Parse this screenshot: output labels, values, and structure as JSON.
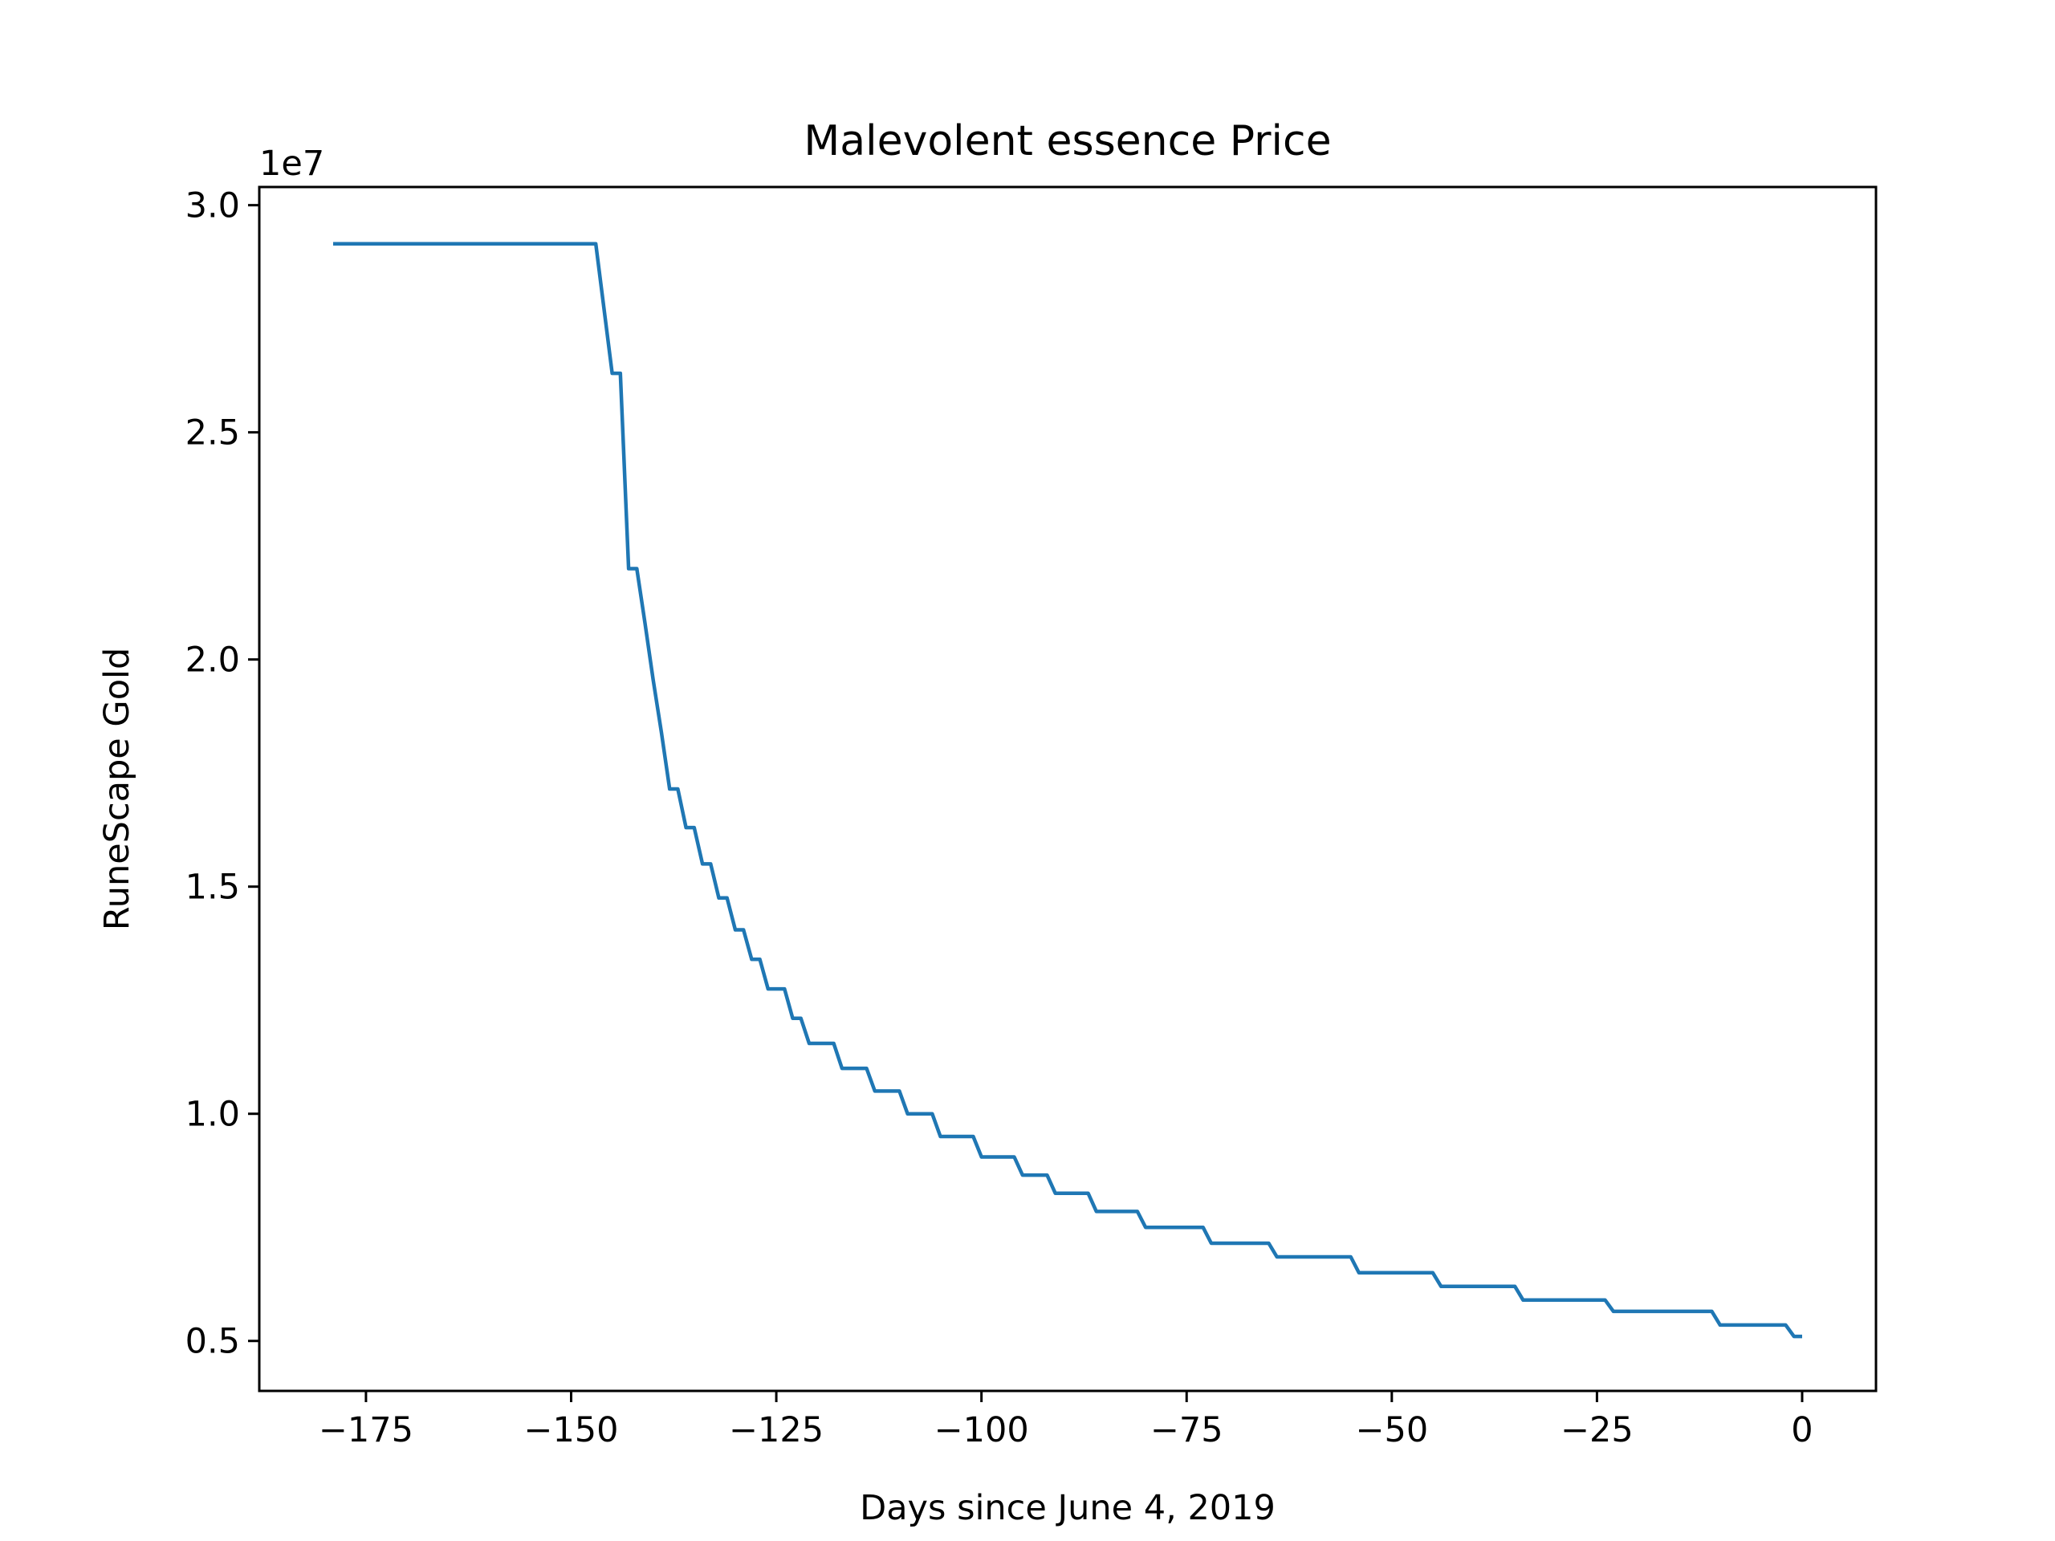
{
  "chart_data": {
    "type": "line",
    "title": "Malevolent essence Price",
    "xlabel": "Days since June 4, 2019",
    "ylabel": "RuneScape Gold",
    "y_offset_text": "1e7",
    "xlim": [
      -188,
      9
    ],
    "ylim": [
      3.9,
      30.4
    ],
    "y_scale_factor": 1000000,
    "grid": false,
    "legend": "none",
    "x_ticks": [
      -175,
      -150,
      -125,
      -100,
      -75,
      -50,
      -25,
      0
    ],
    "x_tick_labels": [
      "−175",
      "−150",
      "−125",
      "−100",
      "−75",
      "−50",
      "−25",
      "0"
    ],
    "y_ticks": [
      5,
      10,
      15,
      20,
      25,
      30
    ],
    "y_tick_labels": [
      "0.5",
      "1.0",
      "1.5",
      "2.0",
      "2.5",
      "3.0"
    ],
    "colors": {
      "line": "#1f77b4",
      "axes": "#000000",
      "background": "#ffffff"
    },
    "series": [
      {
        "x": [
          -179,
          -147,
          -145,
          -144,
          -143,
          -142,
          -141,
          -140,
          -139,
          -138,
          -137,
          -136,
          -135,
          -134,
          -133,
          -132,
          -131,
          -130,
          -129,
          -128,
          -127,
          -126,
          -125,
          -124,
          -123,
          -122,
          -121,
          -120,
          -119,
          -118,
          -117,
          -116,
          -115,
          -114,
          -113,
          -112,
          -111,
          -110,
          -109,
          -108,
          -107,
          -106,
          -105,
          -104,
          -103,
          -102,
          -101,
          -100,
          -99,
          -98,
          -97,
          -96,
          -95,
          -94,
          -93,
          -92,
          -91,
          -90,
          -89,
          -88,
          -87,
          -86,
          -85,
          -84,
          -83,
          -82,
          -81,
          -80,
          -79,
          -78,
          -73,
          -72,
          -65,
          -64,
          -55,
          -54,
          -45,
          -44,
          -35,
          -34,
          -24,
          -23,
          -11,
          -10,
          -2,
          -1,
          0
        ],
        "y": [
          29.15,
          29.15,
          26.3,
          26.3,
          22.0,
          22.0,
          20.8,
          19.55,
          18.4,
          17.15,
          17.15,
          16.3,
          16.3,
          15.5,
          15.5,
          14.75,
          14.75,
          14.05,
          14.05,
          13.4,
          13.4,
          12.75,
          12.75,
          12.75,
          12.1,
          12.1,
          11.55,
          11.55,
          11.55,
          11.55,
          11.0,
          11.0,
          11.0,
          11.0,
          10.5,
          10.5,
          10.5,
          10.5,
          10.0,
          10.0,
          10.0,
          10.0,
          9.5,
          9.5,
          9.5,
          9.5,
          9.5,
          9.05,
          9.05,
          9.05,
          9.05,
          9.05,
          8.65,
          8.65,
          8.65,
          8.65,
          8.25,
          8.25,
          8.25,
          8.25,
          8.25,
          7.85,
          7.85,
          7.85,
          7.85,
          7.85,
          7.85,
          7.5,
          7.5,
          7.5,
          7.5,
          7.15,
          7.15,
          6.85,
          6.85,
          6.5,
          6.5,
          6.2,
          6.2,
          5.9,
          5.9,
          5.65,
          5.65,
          5.35,
          5.35,
          5.1,
          5.1
        ]
      }
    ]
  }
}
